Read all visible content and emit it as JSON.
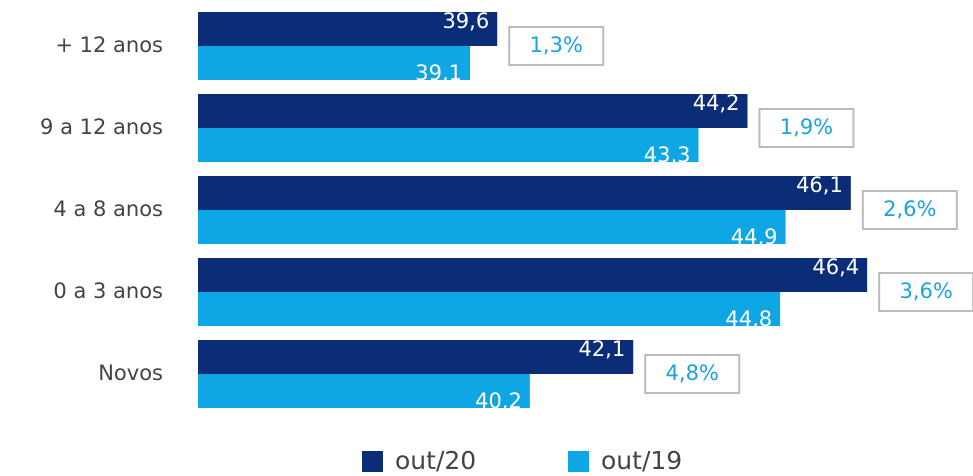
{
  "chart_data": {
    "type": "barh",
    "categories": [
      "+ 12 anos",
      "9 a 12 anos",
      "4 a 8 anos",
      "0 a 3 anos",
      "Novos"
    ],
    "series": [
      {
        "name": "out/20",
        "color": "#0b2d78",
        "values": [
          39.6,
          44.2,
          46.1,
          46.4,
          42.1
        ],
        "value_labels": [
          "39,6",
          "44,2",
          "46,1",
          "46,4",
          "42,1"
        ]
      },
      {
        "name": "out/19",
        "color": "#0fa6e6",
        "values": [
          39.1,
          43.3,
          44.9,
          44.8,
          40.2
        ],
        "value_labels": [
          "39,1",
          "43,3",
          "44,9",
          "44,8",
          "40,2"
        ]
      }
    ],
    "annotations": [
      "1,3%",
      "1,9%",
      "2,6%",
      "3,6%",
      "4,8%"
    ],
    "xlim": [
      34.1,
      47.5
    ],
    "legend": "bottom"
  }
}
